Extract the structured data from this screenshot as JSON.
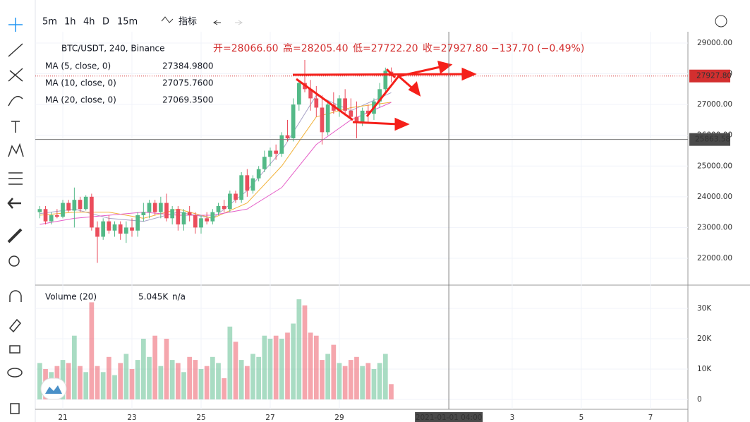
{
  "toolbar": {
    "intervals": [
      "5m",
      "1h",
      "4h",
      "D",
      "15m"
    ],
    "indicators": "指标"
  },
  "chart_data": {
    "type": "candlestick",
    "symbol": "BTC/USDT, 240, Binance",
    "ohlc_legend": [
      "开=28066.60",
      "高=28205.40",
      "低=27722.20",
      "收=27927.80"
    ],
    "change": "−137.70 (−0.49%)",
    "up_color": "#53b987",
    "down_color": "#eb4d5c",
    "candles": [
      [
        23500,
        23700,
        23300,
        23600
      ],
      [
        23600,
        23700,
        23100,
        23200
      ],
      [
        23200,
        23500,
        23100,
        23400
      ],
      [
        23400,
        23600,
        23300,
        23350
      ],
      [
        23350,
        23900,
        23300,
        23800
      ],
      [
        23800,
        23900,
        23500,
        23550
      ],
      [
        23550,
        24300,
        23000,
        23900
      ],
      [
        23900,
        24000,
        23500,
        23600
      ],
      [
        23600,
        24050,
        23550,
        24000
      ],
      [
        24000,
        24100,
        22900,
        23000
      ],
      [
        23000,
        23200,
        21850,
        22700
      ],
      [
        22700,
        23300,
        22600,
        23200
      ],
      [
        23200,
        23400,
        22800,
        22900
      ],
      [
        22900,
        23200,
        22700,
        23100
      ],
      [
        23100,
        23200,
        22600,
        22800
      ],
      [
        22800,
        23200,
        22500,
        23000
      ],
      [
        23000,
        23300,
        22700,
        22900
      ],
      [
        22900,
        23500,
        22700,
        23400
      ],
      [
        23400,
        23800,
        23200,
        23500
      ],
      [
        23500,
        23900,
        23300,
        23800
      ],
      [
        23800,
        23900,
        23400,
        23500
      ],
      [
        23500,
        24000,
        23300,
        23800
      ],
      [
        23800,
        24100,
        23200,
        23300
      ],
      [
        23300,
        23700,
        23100,
        23600
      ],
      [
        23600,
        23700,
        22900,
        23100
      ],
      [
        23100,
        23600,
        22900,
        23500
      ],
      [
        23500,
        23700,
        23200,
        23400
      ],
      [
        23400,
        23500,
        22800,
        23000
      ],
      [
        23000,
        23400,
        22800,
        23300
      ],
      [
        23300,
        23500,
        23100,
        23200
      ],
      [
        23200,
        23600,
        23100,
        23500
      ],
      [
        23500,
        23800,
        23400,
        23700
      ],
      [
        23700,
        23900,
        23500,
        23600
      ],
      [
        23600,
        24200,
        23500,
        24100
      ],
      [
        24100,
        24200,
        23800,
        23900
      ],
      [
        23900,
        24800,
        23800,
        24700
      ],
      [
        24700,
        24900,
        24000,
        24200
      ],
      [
        24200,
        24700,
        24100,
        24600
      ],
      [
        24600,
        25000,
        24500,
        24900
      ],
      [
        24900,
        25500,
        24800,
        25300
      ],
      [
        25300,
        25600,
        25000,
        25500
      ],
      [
        25500,
        25700,
        25200,
        25400
      ],
      [
        25400,
        26100,
        25300,
        26000
      ],
      [
        26000,
        26500,
        25800,
        25900
      ],
      [
        25900,
        27200,
        25800,
        27000
      ],
      [
        27000,
        27800,
        26800,
        27700
      ],
      [
        27700,
        28450,
        27400,
        27500
      ],
      [
        27500,
        27800,
        26800,
        27200
      ],
      [
        27200,
        27600,
        26600,
        26900
      ],
      [
        26900,
        27300,
        25700,
        26100
      ],
      [
        26100,
        27100,
        26000,
        27000
      ],
      [
        27000,
        27400,
        26700,
        26800
      ],
      [
        26800,
        27300,
        26600,
        27200
      ],
      [
        27200,
        27500,
        26700,
        26800
      ],
      [
        26800,
        27200,
        26500,
        26600
      ],
      [
        26600,
        27100,
        25900,
        26400
      ],
      [
        26400,
        26900,
        26300,
        26800
      ],
      [
        26800,
        27000,
        26400,
        26700
      ],
      [
        26700,
        27200,
        26500,
        27100
      ],
      [
        27100,
        27700,
        26900,
        27500
      ],
      [
        27500,
        28200,
        27400,
        28100
      ],
      [
        28066.6,
        28205.4,
        27722.2,
        27927.8
      ]
    ],
    "xlim": [
      -0.78,
      112.5
    ],
    "xticks": [
      {
        "value": 4,
        "label": "21"
      },
      {
        "value": 16,
        "label": "23"
      },
      {
        "value": 28,
        "label": "25"
      },
      {
        "value": 40,
        "label": "27"
      },
      {
        "value": 52,
        "label": "29"
      },
      {
        "value": 82,
        "label": "3"
      },
      {
        "value": 94,
        "label": "5"
      },
      {
        "value": 106,
        "label": "7"
      }
    ],
    "crosshair": {
      "x": 71,
      "x_label": "2021-01-01  04:00",
      "y": 25863.58,
      "y_label": "25863.58"
    },
    "last_price": {
      "value": 27927.8,
      "label": "27927.80"
    },
    "ylim": [
      21150,
      29367
    ],
    "yticks": [
      {
        "value": 29000,
        "label": "29000.00"
      },
      {
        "value": 28000,
        "label": "28000.00"
      },
      {
        "value": 27000,
        "label": "27000.00"
      },
      {
        "value": 26000,
        "label": "26000.00"
      },
      {
        "value": 25000,
        "label": "25000.00"
      },
      {
        "value": 24000,
        "label": "24000.00"
      },
      {
        "value": 23000,
        "label": "23000.00"
      },
      {
        "value": 22000,
        "label": "22000.00"
      }
    ],
    "ma": [
      {
        "name": "MA (5, close, 0)",
        "value_label": "27384.9800",
        "color": "#a9a3c7",
        "x": [
          0,
          6,
          12,
          18,
          24,
          30,
          36,
          42,
          48,
          54,
          61
        ],
        "values": [
          23450,
          23600,
          23300,
          23200,
          23500,
          23300,
          24200,
          25500,
          27300,
          26800,
          27384.98
        ]
      },
      {
        "name": "MA (10, close, 0)",
        "value_label": "27075.7600",
        "color": "#f2b23a",
        "x": [
          0,
          6,
          12,
          18,
          24,
          30,
          36,
          42,
          48,
          54,
          61
        ],
        "values": [
          23400,
          23500,
          23500,
          23300,
          23600,
          23300,
          23800,
          25000,
          26600,
          26900,
          27075.76
        ]
      },
      {
        "name": "MA (20, close, 0)",
        "value_label": "27069.3500",
        "color": "#e55fc8",
        "x": [
          0,
          6,
          12,
          18,
          24,
          30,
          36,
          42,
          48,
          54,
          61
        ],
        "values": [
          23100,
          23300,
          23400,
          23500,
          23400,
          23400,
          23600,
          24300,
          25700,
          26500,
          27069.35
        ]
      }
    ],
    "volume": {
      "name": "Volume (20)",
      "value_label": "5.045K",
      "na": "n/a",
      "values": [
        12000,
        10000,
        9000,
        11000,
        13000,
        12000,
        21000,
        11000,
        9000,
        32000,
        11000,
        9000,
        14000,
        8000,
        12000,
        15000,
        10000,
        13000,
        20000,
        14000,
        21000,
        11000,
        20000,
        13000,
        12000,
        9000,
        14000,
        13000,
        10000,
        11000,
        14000,
        12000,
        7000,
        24000,
        19000,
        13000,
        11000,
        15000,
        14000,
        21000,
        20000,
        21000,
        20000,
        22000,
        25000,
        33000,
        31000,
        22000,
        21000,
        13000,
        15000,
        18000,
        12000,
        11000,
        13000,
        14000,
        11000,
        12000,
        10000,
        12000,
        15000,
        5045
      ],
      "ylim": [
        -3256,
        37442
      ],
      "yticks": [
        {
          "value": 30000,
          "label": "30K"
        },
        {
          "value": 20000,
          "label": "20K"
        },
        {
          "value": 10000,
          "label": "10K"
        },
        0
      ]
    }
  }
}
